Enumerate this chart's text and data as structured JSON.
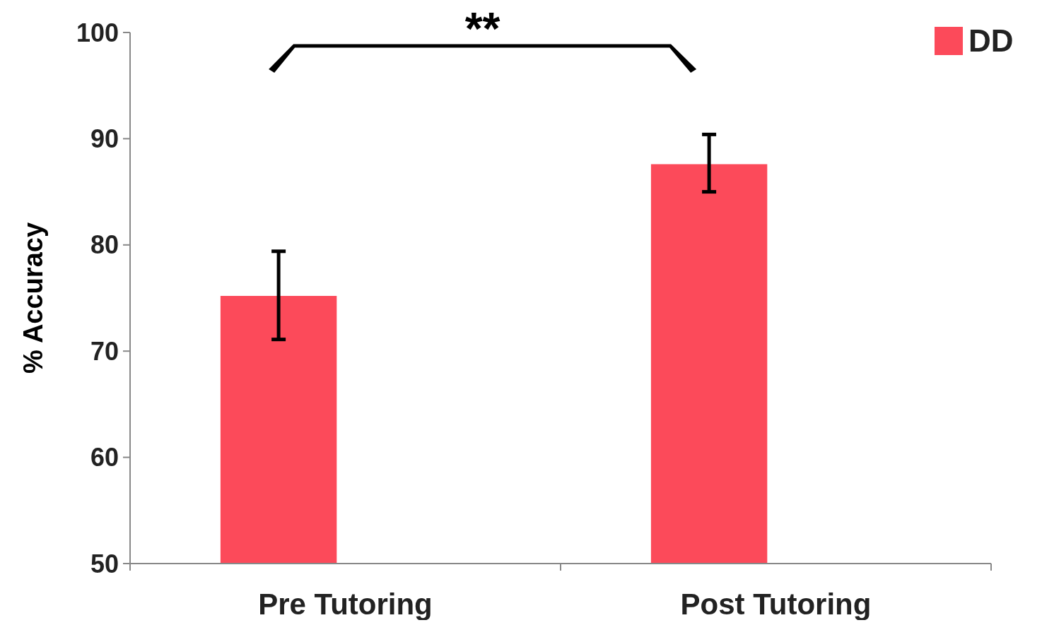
{
  "chart_data": {
    "type": "bar",
    "categories": [
      "Pre Tutoring",
      "Post Tutoring"
    ],
    "series": [
      {
        "name": "DD",
        "color": "#fc4a5a",
        "values": [
          75.2,
          87.6
        ],
        "errors": [
          [
            71.1,
            79.4
          ],
          [
            85.0,
            90.4
          ]
        ]
      }
    ],
    "ylabel": "% Accuracy",
    "ylim": [
      50,
      100
    ],
    "yticks": [
      50,
      60,
      70,
      80,
      90,
      100
    ],
    "annotations": [
      {
        "text": "**"
      }
    ],
    "legend": "top right",
    "grid": false
  }
}
